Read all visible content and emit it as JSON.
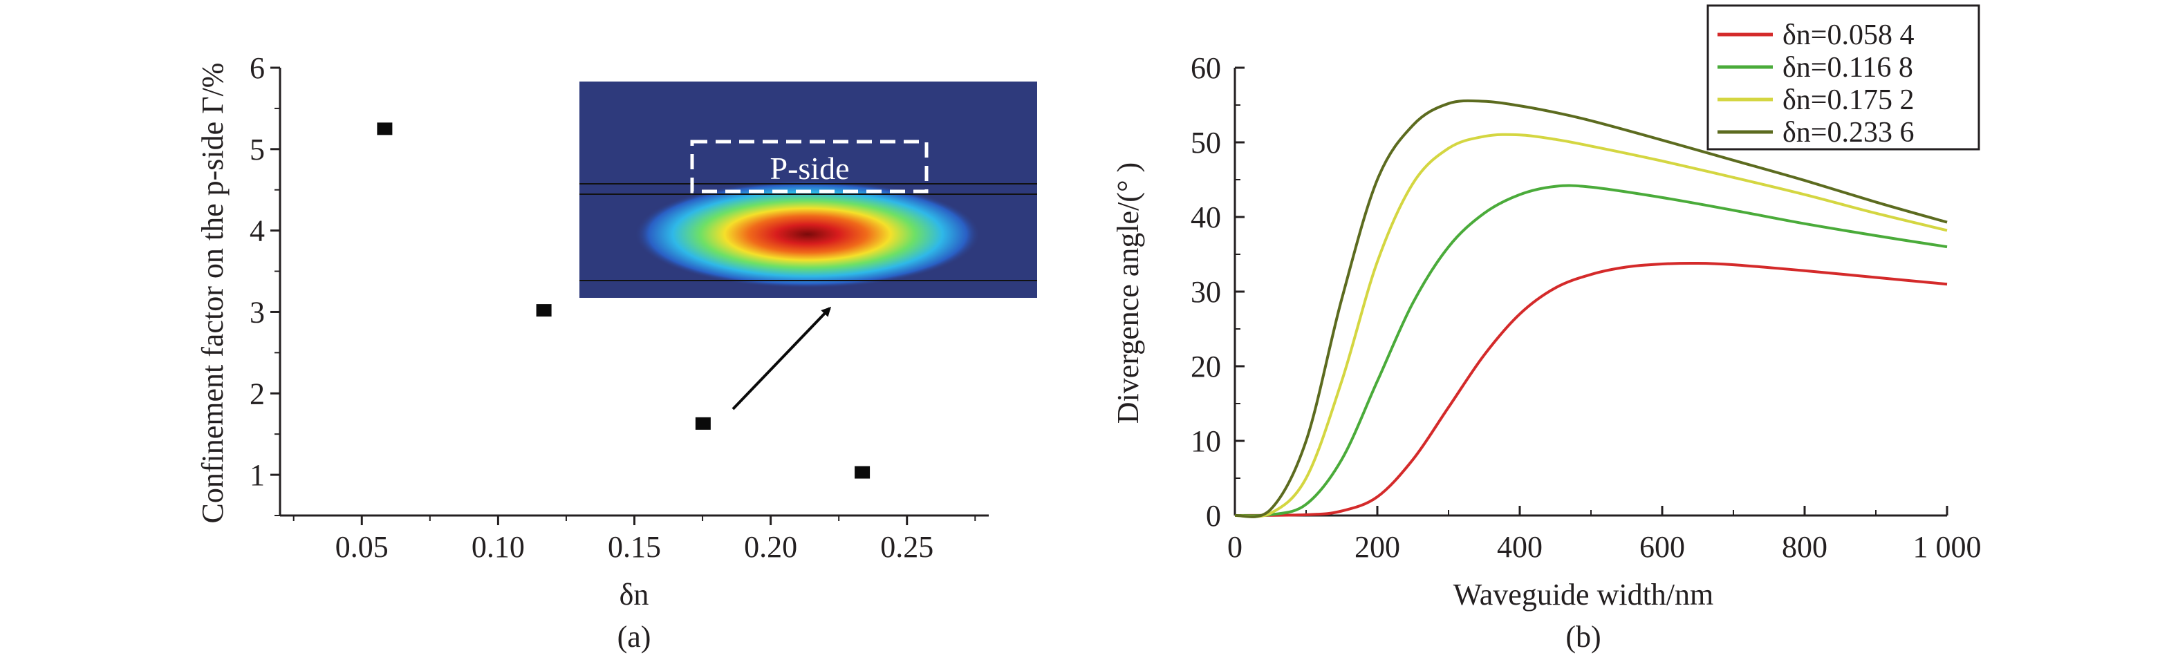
{
  "panel_labels": [
    "(a)",
    "(b)"
  ],
  "colors": {
    "axis": "#231f20",
    "marker": "#0a0a0a",
    "inset_background": "#2e3a7c"
  },
  "chart_data": [
    {
      "type": "scatter",
      "xlabel": "δn",
      "ylabel": "Confinement factor on the p-side Γ/%",
      "xlim": [
        0.02,
        0.28
      ],
      "ylim": [
        0.5,
        6
      ],
      "xticks": [
        0.05,
        0.1,
        0.15,
        0.2,
        0.25
      ],
      "xtick_labels": [
        "0.05",
        "0.10",
        "0.15",
        "0.20",
        "0.25"
      ],
      "yticks": [
        1,
        2,
        3,
        4,
        5,
        6
      ],
      "ytick_labels": [
        "1",
        "2",
        "3",
        "4",
        "5",
        "6"
      ],
      "points": [
        {
          "x": 0.0584,
          "y": 5.25
        },
        {
          "x": 0.1168,
          "y": 3.02
        },
        {
          "x": 0.1752,
          "y": 1.63
        },
        {
          "x": 0.2336,
          "y": 1.03
        }
      ],
      "inset": {
        "label": "P-side",
        "arrow_from_point_index": 2
      }
    },
    {
      "type": "line",
      "xlabel": "Waveguide width/nm",
      "ylabel": "Divergence angle/(°  )",
      "xlim": [
        0,
        1000
      ],
      "ylim": [
        0,
        60
      ],
      "xticks": [
        0,
        200,
        400,
        600,
        800,
        1000
      ],
      "xtick_labels": [
        "0",
        "200",
        "400",
        "600",
        "800",
        "1 000"
      ],
      "yticks": [
        0,
        10,
        20,
        30,
        40,
        50,
        60
      ],
      "ytick_labels": [
        "0",
        "10",
        "20",
        "30",
        "40",
        "50",
        "60"
      ],
      "legend_position": "top-right",
      "series": [
        {
          "name": "δn=0.058 4",
          "color": "#d42a2a",
          "x": [
            0,
            100,
            150,
            200,
            250,
            300,
            350,
            400,
            450,
            500,
            550,
            600,
            650,
            700,
            800,
            900,
            1000
          ],
          "y": [
            0,
            0.1,
            0.6,
            2.5,
            7.5,
            14.5,
            21.5,
            27,
            30.5,
            32.3,
            33.3,
            33.7,
            33.8,
            33.6,
            32.8,
            31.9,
            31
          ]
        },
        {
          "name": "δn=0.116 8",
          "color": "#4aab3a",
          "x": [
            0,
            50,
            100,
            150,
            200,
            250,
            300,
            350,
            400,
            450,
            500,
            600,
            700,
            800,
            900,
            1000
          ],
          "y": [
            0,
            0.1,
            1.5,
            7.5,
            18,
            28.5,
            36,
            40.5,
            43,
            44.1,
            44,
            42.6,
            40.9,
            39.1,
            37.5,
            36
          ]
        },
        {
          "name": "δn=0.175 2",
          "color": "#d4d641",
          "x": [
            0,
            50,
            100,
            150,
            200,
            250,
            300,
            350,
            400,
            450,
            500,
            600,
            700,
            800,
            900,
            1000
          ],
          "y": [
            0,
            0.3,
            5,
            18,
            34,
            44.5,
            49.2,
            50.8,
            51,
            50.4,
            49.5,
            47.5,
            45.3,
            43,
            40.5,
            38.2
          ]
        },
        {
          "name": "δn=0.233 6",
          "color": "#5c6b1f",
          "x": [
            0,
            50,
            100,
            150,
            200,
            250,
            300,
            350,
            400,
            450,
            500,
            600,
            700,
            800,
            900,
            1000
          ],
          "y": [
            0,
            0.8,
            10,
            29,
            45,
            52.3,
            55.2,
            55.5,
            54.9,
            54,
            52.9,
            50.3,
            47.6,
            44.9,
            42,
            39.3
          ]
        }
      ]
    }
  ]
}
